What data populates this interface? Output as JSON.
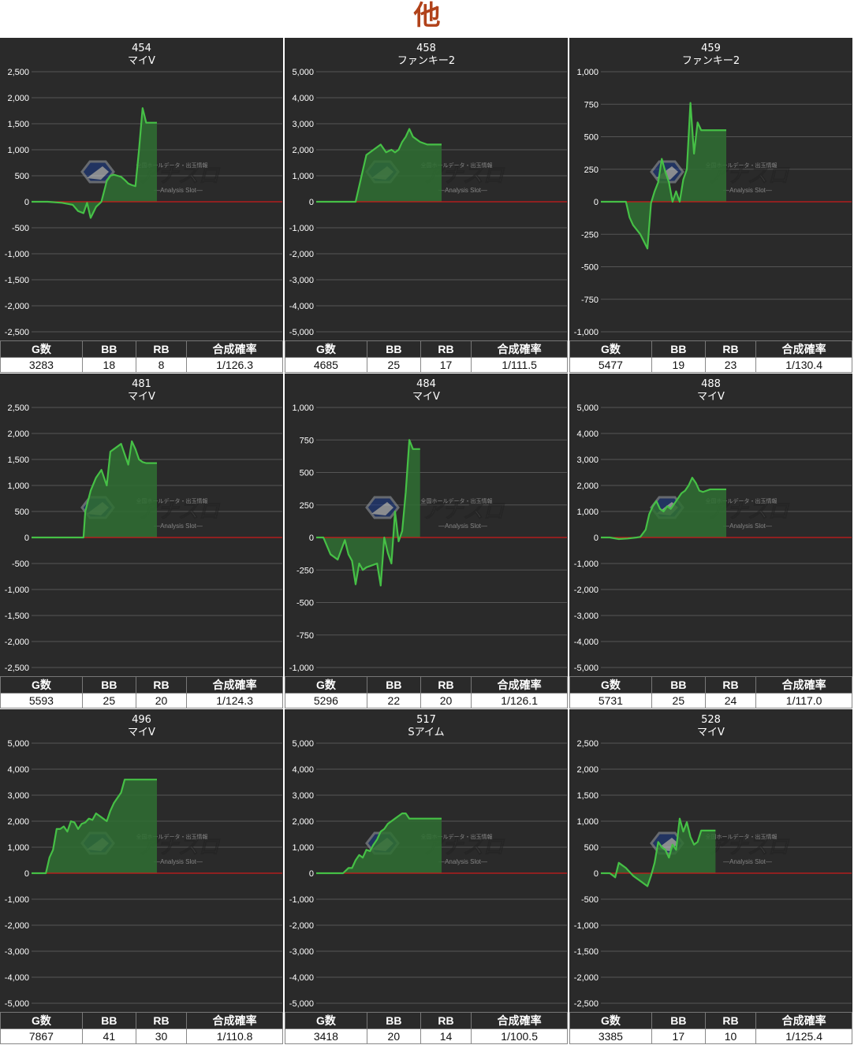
{
  "page": {
    "title": "他"
  },
  "colors": {
    "background": "#2a2a2a",
    "line": "#46c046",
    "fill": "#2f6e33",
    "zero_line": "#cc1a1a",
    "grid": "#555555",
    "text": "#ffffff",
    "title_accent": "#b1421a"
  },
  "watermark": {
    "brand": "アナスロ",
    "sub": "―Analysis Slot―",
    "top": "全国ホールデータ・出玉情報"
  },
  "stats_headers": [
    "G数",
    "BB",
    "RB",
    "合成確率"
  ],
  "chart_data": [
    {
      "type": "area",
      "title": "454",
      "subtitle": "マイV",
      "ylim": [
        -2500,
        2500
      ],
      "ticks": [
        2500,
        2000,
        1500,
        1000,
        500,
        0,
        -500,
        -1000,
        -1500,
        -2000,
        -2500
      ],
      "tick_labels": [
        "2,500",
        "2,000",
        "1,500",
        "1,000",
        "500",
        "0",
        "-500",
        "-1,000",
        "-1,500",
        "-2,000",
        "-2,500"
      ],
      "x": [
        0,
        9,
        17,
        23,
        26,
        29,
        31,
        33,
        36,
        39,
        42,
        44,
        46,
        48,
        50,
        52,
        54,
        56,
        58,
        60,
        62,
        64,
        66,
        68,
        70
      ],
      "values": [
        0,
        0,
        -20,
        -60,
        -180,
        -220,
        -20,
        -310,
        -100,
        0,
        400,
        500,
        520,
        500,
        480,
        420,
        350,
        320,
        300,
        1000,
        1800,
        1520,
        1520,
        1520,
        1520
      ],
      "stats": {
        "g": "3283",
        "bb": "18",
        "rb": "8",
        "prob": "1/126.3"
      }
    },
    {
      "type": "area",
      "title": "458",
      "subtitle": "ファンキー2",
      "ylim": [
        -5000,
        5000
      ],
      "ticks": [
        5000,
        4000,
        3000,
        2000,
        1000,
        0,
        -1000,
        -2000,
        -3000,
        -4000,
        -5000
      ],
      "tick_labels": [
        "5,000",
        "4,000",
        "3,000",
        "2,000",
        "1,000",
        "0",
        "-1,000",
        "-2,000",
        "-3,000",
        "-4,000",
        "-5,000"
      ],
      "x": [
        0,
        5,
        10,
        15,
        20,
        22,
        25,
        28,
        32,
        36,
        39,
        42,
        44,
        46,
        48,
        50,
        52,
        54,
        56,
        58,
        60,
        62,
        64,
        66,
        68,
        70
      ],
      "values": [
        0,
        0,
        0,
        0,
        0,
        0,
        900,
        1800,
        2000,
        2200,
        1900,
        2000,
        1900,
        2000,
        2300,
        2500,
        2800,
        2500,
        2400,
        2300,
        2250,
        2200,
        2200,
        2200,
        2200,
        2200
      ],
      "stats": {
        "g": "4685",
        "bb": "25",
        "rb": "17",
        "prob": "1/111.5"
      }
    },
    {
      "type": "area",
      "title": "459",
      "subtitle": "ファンキー2",
      "ylim": [
        -1000,
        1000
      ],
      "ticks": [
        1000,
        750,
        500,
        250,
        0,
        -250,
        -500,
        -750,
        -1000
      ],
      "tick_labels": [
        "1,000",
        "750",
        "500",
        "250",
        "0",
        "-250",
        "-500",
        "-750",
        "-1,000"
      ],
      "x": [
        0,
        5,
        10,
        12,
        14,
        16,
        18,
        22,
        26,
        28,
        30,
        32,
        34,
        36,
        38,
        40,
        42,
        44,
        46,
        48,
        50,
        52,
        54,
        56,
        58,
        60,
        62,
        64,
        66,
        68,
        70
      ],
      "values": [
        0,
        0,
        0,
        0,
        0,
        -120,
        -180,
        -250,
        -360,
        -10,
        80,
        150,
        330,
        230,
        150,
        0,
        80,
        0,
        170,
        250,
        760,
        370,
        610,
        550,
        550,
        550,
        550,
        550,
        550,
        550,
        550
      ],
      "stats": {
        "g": "5477",
        "bb": "19",
        "rb": "23",
        "prob": "1/130.4"
      }
    },
    {
      "type": "area",
      "title": "481",
      "subtitle": "マイV",
      "ylim": [
        -2500,
        2500
      ],
      "ticks": [
        2500,
        2000,
        1500,
        1000,
        500,
        0,
        -500,
        -1000,
        -1500,
        -2000,
        -2500
      ],
      "tick_labels": [
        "2,500",
        "2,000",
        "1,500",
        "1,000",
        "500",
        "0",
        "-500",
        "-1,000",
        "-1,500",
        "-2,000",
        "-2,500"
      ],
      "x": [
        0,
        5,
        10,
        15,
        20,
        25,
        29,
        30,
        33,
        36,
        39,
        42,
        44,
        46,
        50,
        54,
        56,
        58,
        60,
        62,
        64,
        66,
        68,
        70
      ],
      "values": [
        0,
        0,
        0,
        0,
        0,
        0,
        0,
        500,
        900,
        1150,
        1300,
        1000,
        1650,
        1700,
        1800,
        1400,
        1850,
        1700,
        1500,
        1450,
        1430,
        1430,
        1430,
        1430
      ],
      "stats": {
        "g": "5593",
        "bb": "25",
        "rb": "20",
        "prob": "1/124.3"
      }
    },
    {
      "type": "area",
      "title": "484",
      "subtitle": "マイV",
      "ylim": [
        -1000,
        1000
      ],
      "ticks": [
        1000,
        750,
        500,
        250,
        0,
        -250,
        -500,
        -750,
        -1000
      ],
      "tick_labels": [
        "1,000",
        "750",
        "500",
        "250",
        "0",
        "-250",
        "-500",
        "-750",
        "-1,000"
      ],
      "x": [
        0,
        4,
        8,
        12,
        16,
        18,
        20,
        22,
        24,
        26,
        28,
        34,
        36,
        38,
        40,
        42,
        44,
        46,
        48,
        50,
        52,
        54,
        56,
        58
      ],
      "values": [
        0,
        0,
        -130,
        -170,
        -20,
        -130,
        -180,
        -360,
        -200,
        -250,
        -230,
        -200,
        -370,
        0,
        -120,
        -200,
        200,
        -30,
        50,
        350,
        750,
        680,
        680,
        680
      ],
      "stats": {
        "g": "5296",
        "bb": "22",
        "rb": "20",
        "prob": "1/126.1"
      }
    },
    {
      "type": "area",
      "title": "488",
      "subtitle": "マイV",
      "ylim": [
        -5000,
        5000
      ],
      "ticks": [
        5000,
        4000,
        3000,
        2000,
        1000,
        0,
        -1000,
        -2000,
        -3000,
        -4000,
        -5000
      ],
      "tick_labels": [
        "5,000",
        "4,000",
        "3,000",
        "2,000",
        "1,000",
        "0",
        "-1,000",
        "-2,000",
        "-3,000",
        "-4,000",
        "-5,000"
      ],
      "x": [
        0,
        5,
        10,
        15,
        20,
        22,
        25,
        27,
        29,
        31,
        33,
        35,
        37,
        39,
        41,
        43,
        45,
        47,
        49,
        51,
        53,
        55,
        57,
        59,
        61,
        63,
        65,
        66,
        68,
        70
      ],
      "values": [
        0,
        0,
        -60,
        -40,
        0,
        20,
        300,
        900,
        1200,
        1400,
        1100,
        1000,
        1200,
        1100,
        1300,
        1500,
        1700,
        1800,
        2000,
        2300,
        2100,
        1800,
        1750,
        1800,
        1850,
        1850,
        1850,
        1850,
        1850,
        1850
      ],
      "stats": {
        "g": "5731",
        "bb": "25",
        "rb": "24",
        "prob": "1/117.0"
      }
    },
    {
      "type": "area",
      "title": "496",
      "subtitle": "マイV",
      "ylim": [
        -5000,
        5000
      ],
      "ticks": [
        5000,
        4000,
        3000,
        2000,
        1000,
        0,
        -1000,
        -2000,
        -3000,
        -4000,
        -5000
      ],
      "tick_labels": [
        "5,000",
        "4,000",
        "3,000",
        "2,000",
        "1,000",
        "0",
        "-1,000",
        "-2,000",
        "-3,000",
        "-4,000",
        "-5,000"
      ],
      "x": [
        0,
        5,
        8,
        10,
        12,
        14,
        16,
        18,
        20,
        22,
        24,
        26,
        28,
        30,
        32,
        34,
        36,
        38,
        40,
        42,
        44,
        46,
        48,
        50,
        52,
        54,
        56,
        58,
        60,
        62,
        64,
        66,
        68,
        70
      ],
      "values": [
        0,
        0,
        0,
        600,
        900,
        1700,
        1700,
        1800,
        1600,
        2000,
        1950,
        1700,
        1900,
        1950,
        2100,
        2050,
        2300,
        2200,
        2100,
        2000,
        2400,
        2700,
        2900,
        3100,
        3600,
        3600,
        3600,
        3600,
        3600,
        3600,
        3600,
        3600,
        3600,
        3600
      ],
      "stats": {
        "g": "7867",
        "bb": "41",
        "rb": "30",
        "prob": "1/110.8"
      }
    },
    {
      "type": "area",
      "title": "517",
      "subtitle": "Sアイム",
      "ylim": [
        -5000,
        5000
      ],
      "ticks": [
        5000,
        4000,
        3000,
        2000,
        1000,
        0,
        -1000,
        -2000,
        -3000,
        -4000,
        -5000
      ],
      "tick_labels": [
        "5,000",
        "4,000",
        "3,000",
        "2,000",
        "1,000",
        "0",
        "-1,000",
        "-2,000",
        "-3,000",
        "-4,000",
        "-5,000"
      ],
      "x": [
        0,
        5,
        10,
        15,
        18,
        20,
        22,
        24,
        26,
        28,
        30,
        32,
        34,
        36,
        38,
        40,
        42,
        44,
        46,
        48,
        50,
        52,
        54,
        56,
        58,
        60,
        62,
        64,
        66,
        68,
        70
      ],
      "values": [
        0,
        0,
        0,
        0,
        200,
        200,
        500,
        700,
        600,
        900,
        850,
        1100,
        1300,
        1600,
        1700,
        1900,
        2000,
        2100,
        2200,
        2300,
        2300,
        2100,
        2100,
        2100,
        2100,
        2100,
        2100,
        2100,
        2100,
        2100,
        2100
      ],
      "stats": {
        "g": "3418",
        "bb": "20",
        "rb": "14",
        "prob": "1/100.5"
      }
    },
    {
      "type": "area",
      "title": "528",
      "subtitle": "マイV",
      "ylim": [
        -2500,
        2500
      ],
      "ticks": [
        2500,
        2000,
        1500,
        1000,
        500,
        0,
        -500,
        -1000,
        -1500,
        -2000,
        -2500
      ],
      "tick_labels": [
        "2,500",
        "2,000",
        "1,500",
        "1,000",
        "500",
        "0",
        "-500",
        "-1,000",
        "-1,500",
        "-2,000",
        "-2,500"
      ],
      "x": [
        0,
        5,
        8,
        10,
        14,
        18,
        22,
        26,
        28,
        30,
        32,
        34,
        36,
        38,
        40,
        42,
        44,
        46,
        48,
        50,
        52,
        54,
        56,
        58,
        60,
        62,
        64
      ],
      "values": [
        0,
        0,
        -80,
        200,
        100,
        -50,
        -150,
        -250,
        -50,
        200,
        600,
        500,
        450,
        300,
        550,
        450,
        1050,
        800,
        980,
        700,
        550,
        600,
        820,
        820,
        820,
        820,
        820
      ],
      "stats": {
        "g": "3385",
        "bb": "17",
        "rb": "10",
        "prob": "1/125.4"
      }
    }
  ]
}
